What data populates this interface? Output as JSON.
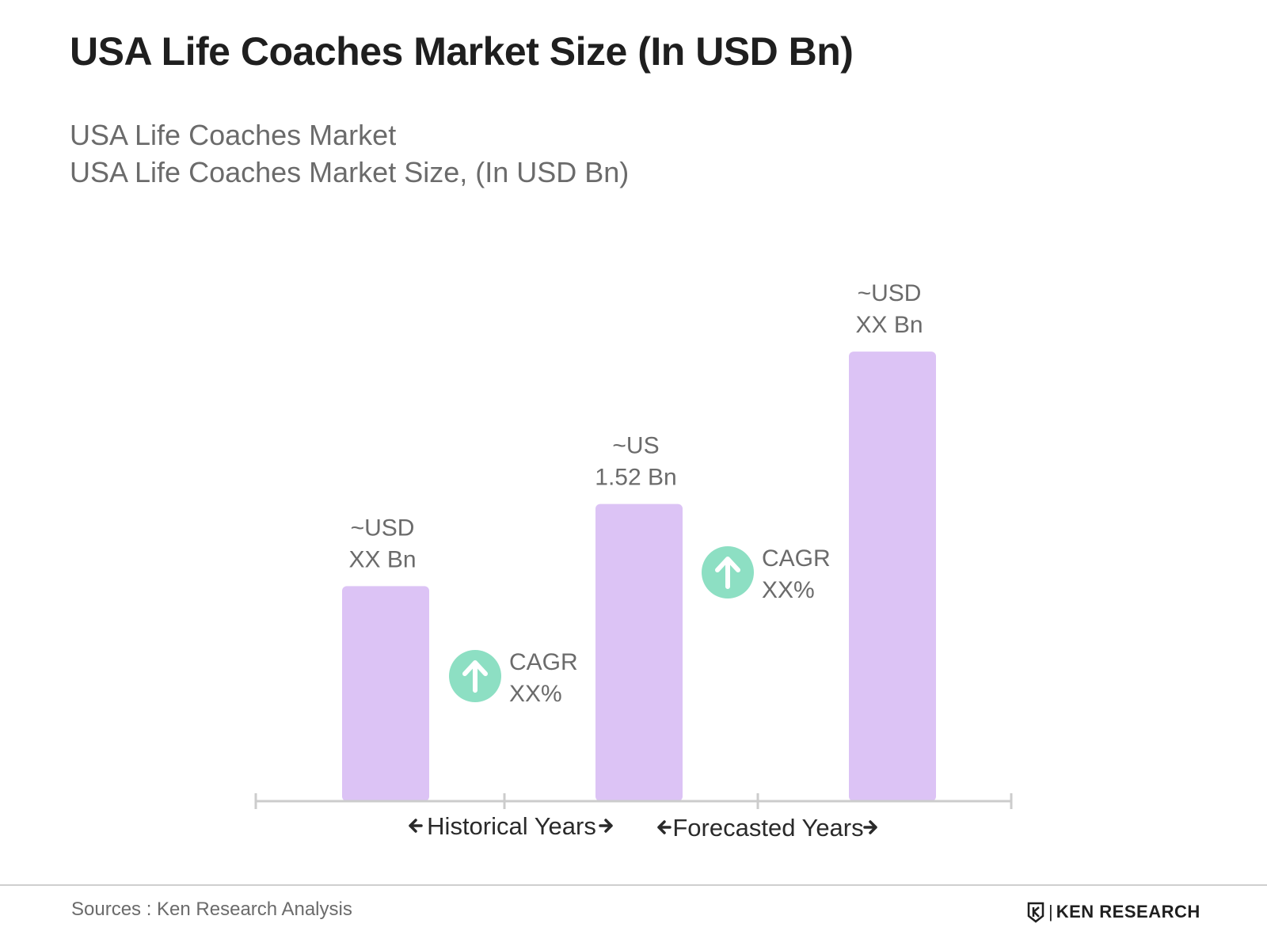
{
  "title": "USA Life Coaches Market Size (In USD Bn)",
  "subtitle_1": "USA Life Coaches Market",
  "subtitle_2": "USA Life Coaches Market Size, (In USD Bn)",
  "footer": {
    "source": "Sources : Ken Research Analysis",
    "logo_text": "KEN RESEARCH"
  },
  "colors": {
    "bar": "#dcc3f5",
    "cagr_circle": "#8ddfc3",
    "axis": "#cccccc",
    "label": "#6b6b6b",
    "axis_text": "#2a2a2a"
  },
  "chart_data": {
    "type": "bar",
    "title": "USA Life Coaches Market Size (In USD Bn)",
    "categories": [
      "",
      "",
      ""
    ],
    "series": [
      {
        "values": [
          1.1,
          1.52,
          2.3
        ]
      }
    ],
    "ylim": [
      0,
      2.6
    ],
    "grid": false,
    "data_labels": [
      [
        "~USD",
        "XX Bn"
      ],
      [
        "~US",
        "1.52 Bn"
      ],
      [
        "~USD",
        "XX Bn"
      ]
    ],
    "cagr": [
      {
        "label": "CAGR",
        "value": "XX%"
      },
      {
        "label": "CAGR",
        "value": "XX%"
      }
    ],
    "periods": [
      "Historical Years",
      "Forecasted Years"
    ]
  }
}
